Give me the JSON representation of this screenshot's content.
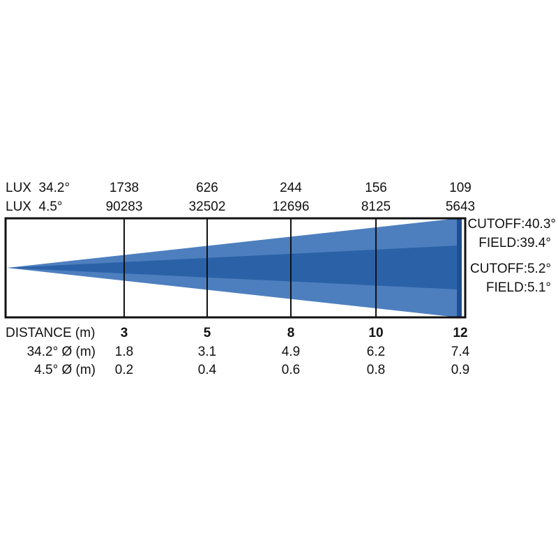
{
  "lux_rows": [
    {
      "label": "LUX  34.2°",
      "values": [
        "1738",
        "626",
        "244",
        "156",
        "109"
      ]
    },
    {
      "label": "LUX  4.5°",
      "values": [
        "90283",
        "32502",
        "12696",
        "8125",
        "5643"
      ]
    }
  ],
  "distance": {
    "label": "DISTANCE (m)",
    "values": [
      "3",
      "5",
      "8",
      "10",
      "12"
    ]
  },
  "diameter_rows": [
    {
      "label": "34.2° Ø (m)",
      "values": [
        "1.8",
        "3.1",
        "4.9",
        "6.2",
        "7.4"
      ]
    },
    {
      "label": "4.5° Ø (m)",
      "values": [
        "0.2",
        "0.4",
        "0.6",
        "0.8",
        "0.9"
      ]
    }
  ],
  "angles": [
    "CUTOFF:40.3°",
    "FIELD:39.4°",
    "CUTOFF:5.2°",
    "FIELD:5.1°"
  ]
}
